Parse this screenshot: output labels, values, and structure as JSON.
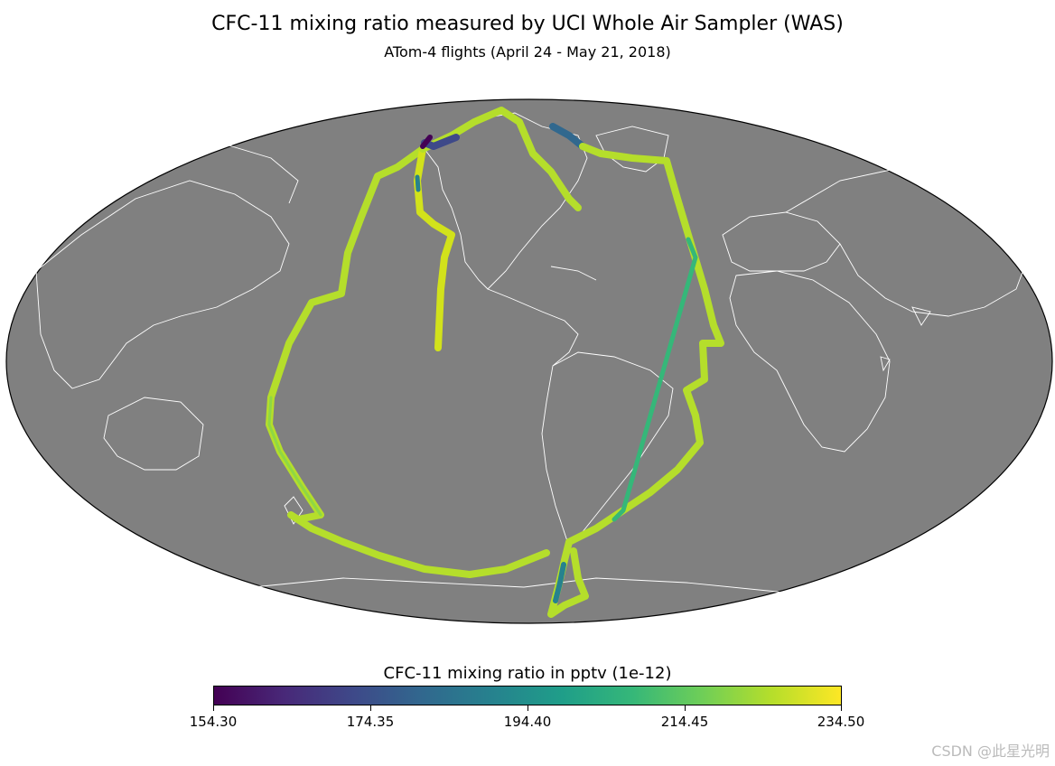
{
  "title": "CFC-11 mixing ratio measured by UCI Whole Air Sampler (WAS)",
  "subtitle": "ATom-4 flights (April 24 - May 21, 2018)",
  "map": {
    "projection": "mollweide",
    "ocean_color": "#808080",
    "coast_color": "#ffffff",
    "border_color": "#000000"
  },
  "colorbar": {
    "label": "CFC-11 mixing ratio in pptv (1e-12)",
    "min": 154.3,
    "max": 234.5,
    "ticks": [
      "154.30",
      "174.35",
      "194.40",
      "214.45",
      "234.50"
    ],
    "colormap": "viridis"
  },
  "colors": {
    "dark_purple": "#440154",
    "teal": "#26828e",
    "green": "#35b779",
    "lime": "#b5de2b",
    "yellow": "#fde725"
  },
  "watermark": "CSDN @此星光明"
}
